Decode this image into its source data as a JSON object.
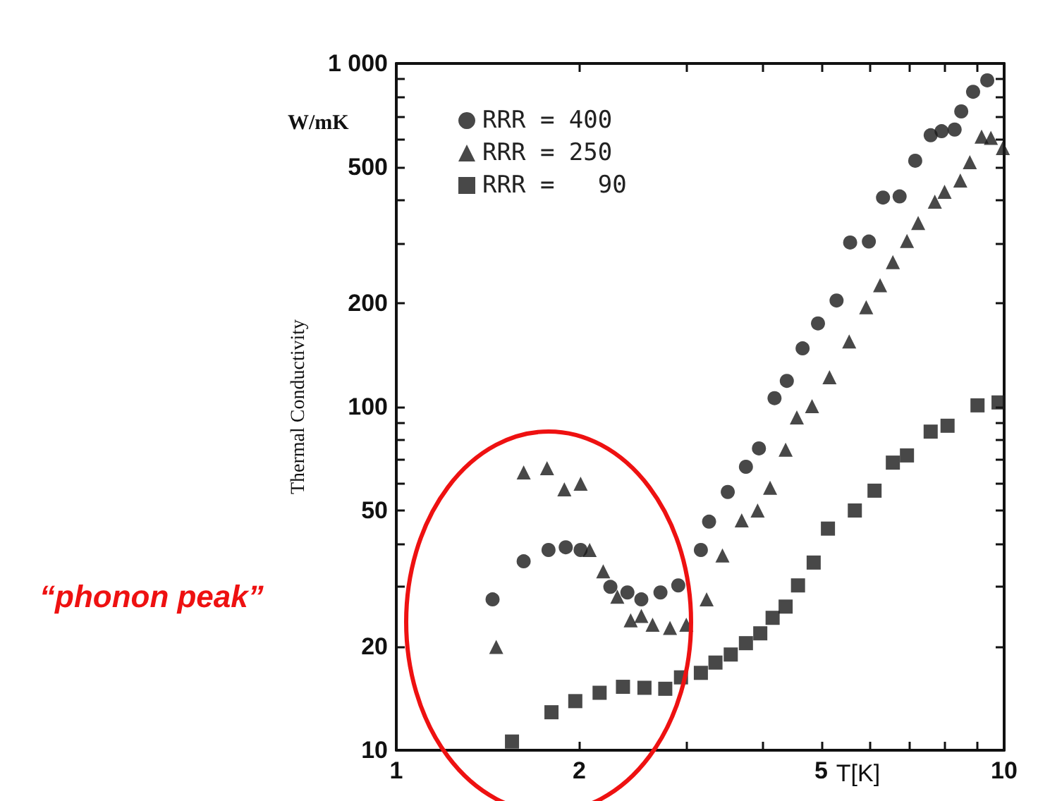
{
  "chart_data": {
    "type": "scatter",
    "ylabel": "Thermal Conductivity",
    "xlabel": "T[K]",
    "log": "xy",
    "grid": false,
    "legend": "top left",
    "annotations": [
      "“phonon peak”",
      "W/mK"
    ],
    "xlim": [
      1,
      10
    ],
    "ylim": [
      10,
      1000
    ],
    "xticks": [
      1,
      2,
      {
        "value": 3,
        "label": null
      },
      {
        "value": 4,
        "label": null
      },
      5,
      {
        "value": 6,
        "label": null
      },
      {
        "value": 7,
        "label": null
      },
      {
        "value": 8,
        "label": null
      },
      {
        "value": 9,
        "label": null
      },
      10
    ],
    "yticks": [
      10,
      20,
      {
        "value": 30,
        "label": null
      },
      {
        "value": 40,
        "label": null
      },
      50,
      {
        "value": 60,
        "label": null
      },
      {
        "value": 70,
        "label": null
      },
      {
        "value": 80,
        "label": null
      },
      {
        "value": 90,
        "label": null
      },
      100,
      200,
      {
        "value": 300,
        "label": null
      },
      {
        "value": 400,
        "label": null
      },
      500,
      {
        "value": 600,
        "label": null
      },
      {
        "value": 700,
        "label": null
      },
      {
        "value": 800,
        "label": null
      },
      {
        "value": 900,
        "label": null
      },
      {
        "value": 1000,
        "label": "1 000"
      }
    ],
    "series": [
      {
        "name": "RRR = 400",
        "color": "#1a1a1a",
        "marker": "circle",
        "x": [
          1.44,
          1.62,
          1.78,
          1.9,
          2.01,
          2.25,
          2.4,
          2.53,
          2.72,
          2.91,
          3.17,
          3.27,
          3.51,
          3.76,
          3.95,
          4.19,
          4.39,
          4.66,
          4.94,
          5.3,
          5.58,
          5.99,
          6.32,
          6.73,
          7.14,
          7.57,
          7.89,
          8.29,
          8.5,
          8.89,
          9.38
        ],
        "values": [
          27.5,
          35.5,
          38.3,
          39,
          38.3,
          29.9,
          28.8,
          27.5,
          28.8,
          30.2,
          38.3,
          46.3,
          56.5,
          66.9,
          75.7,
          106,
          119,
          148,
          175,
          204,
          301,
          303,
          407,
          410,
          521,
          618,
          635,
          642,
          725,
          827,
          893
        ]
      },
      {
        "name": "RRR = 250",
        "color": "#1a1a1a",
        "marker": "triangle",
        "x": [
          1.46,
          1.62,
          1.77,
          1.89,
          2.01,
          2.08,
          2.19,
          2.31,
          2.43,
          2.53,
          2.64,
          2.82,
          3.0,
          3.24,
          3.44,
          3.7,
          3.93,
          4.12,
          4.37,
          4.56,
          4.83,
          5.16,
          5.56,
          5.93,
          6.25,
          6.56,
          6.92,
          7.22,
          7.69,
          7.98,
          8.47,
          8.78,
          9.18,
          9.51,
          9.95
        ],
        "values": [
          20,
          64.4,
          66.3,
          57.5,
          59.7,
          38.3,
          33.2,
          28,
          23.9,
          24.6,
          23.2,
          22.7,
          23.2,
          27.5,
          36.9,
          46.7,
          49.9,
          58.1,
          75,
          93.1,
          100.5,
          122,
          155,
          195,
          226,
          264,
          304,
          343,
          396,
          423,
          456,
          516,
          612,
          607,
          567
        ]
      },
      {
        "name": "RRR =   90",
        "color": "#1a1a1a",
        "marker": "square",
        "x": [
          1.55,
          1.8,
          1.97,
          2.16,
          2.36,
          2.56,
          2.77,
          2.94,
          3.17,
          3.35,
          3.55,
          3.76,
          3.97,
          4.16,
          4.37,
          4.58,
          4.86,
          5.13,
          5.68,
          6.12,
          6.56,
          6.92,
          7.57,
          8.07,
          9.04,
          9.79
        ],
        "values": [
          10.6,
          12.9,
          13.9,
          14.7,
          15.3,
          15.2,
          15.1,
          16.3,
          16.8,
          18,
          19,
          20.5,
          21.9,
          24.3,
          26.2,
          30.2,
          35.2,
          44.2,
          49.9,
          57,
          68.8,
          72.2,
          84.7,
          88.1,
          101,
          103
        ]
      }
    ]
  }
}
